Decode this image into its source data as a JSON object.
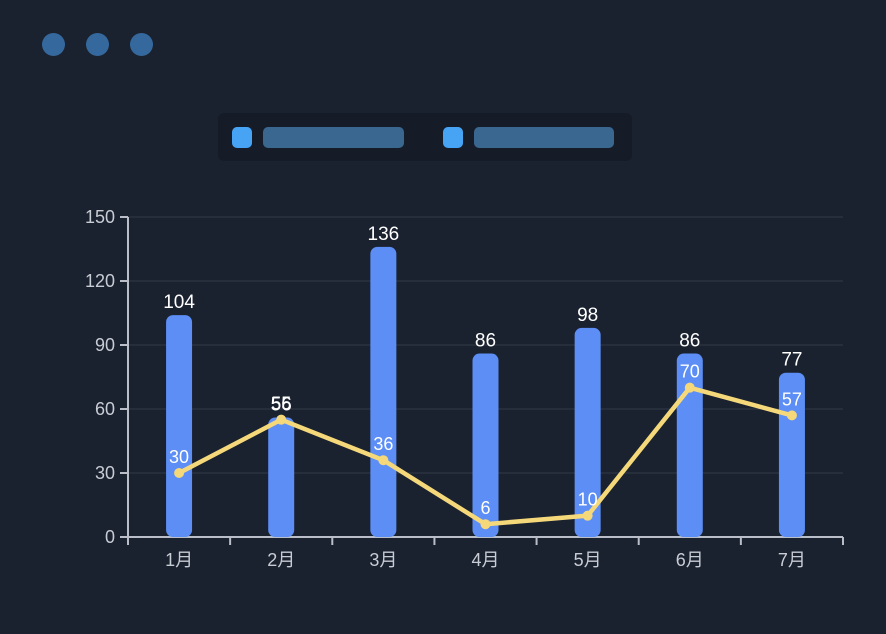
{
  "window": {
    "controls": {
      "count": 3,
      "color": "#35699d"
    }
  },
  "legend": {
    "items": [
      {
        "swatch_color": "#47a4f5",
        "label_redacted": true,
        "series": "bar-series"
      },
      {
        "swatch_color": "#47a4f5",
        "label_redacted": true,
        "series": "line-series"
      }
    ]
  },
  "chart_data": {
    "type": "bar",
    "subtype": "bar+line combo",
    "categories": [
      "1月",
      "2月",
      "3月",
      "4月",
      "5月",
      "6月",
      "7月"
    ],
    "series": [
      {
        "name": "bar-series",
        "type": "bar",
        "color": "#5c8ef5",
        "values": [
          104,
          56,
          136,
          86,
          98,
          86,
          77
        ]
      },
      {
        "name": "line-series",
        "type": "line",
        "color": "#f4d87a",
        "values": [
          30,
          55,
          36,
          6,
          10,
          70,
          57
        ]
      }
    ],
    "title": "",
    "xlabel": "",
    "ylabel": "",
    "ylim": [
      0,
      150
    ],
    "yticks": [
      0,
      30,
      60,
      90,
      120,
      150
    ],
    "grid": true,
    "legend_position": "top",
    "value_labels_color": "#ffffff"
  },
  "colors": {
    "background": "#1a212f",
    "gridline": "#333a48",
    "axis_line": "#b9bec8",
    "axis_text": "#c8ccd4",
    "value_label": "#ffffff"
  }
}
